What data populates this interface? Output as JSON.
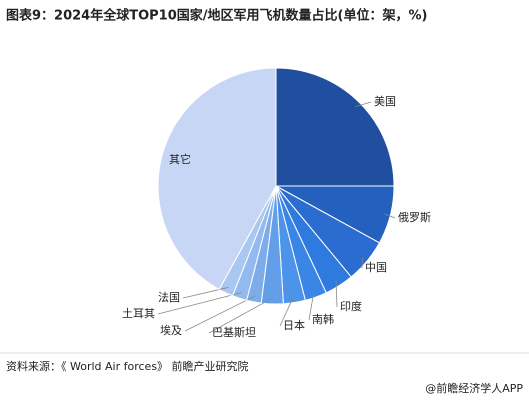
{
  "chart_data": {
    "type": "pie",
    "title": "图表9：2024年全球TOP10国家/地区军用飞机数量占比(单位：架，%)",
    "categories": [
      "美国",
      "俄罗斯",
      "中国",
      "印度",
      "南韩",
      "日本",
      "巴基斯坦",
      "埃及",
      "土耳其",
      "法国",
      "其它"
    ],
    "values": [
      25,
      8,
      6,
      4,
      3,
      3,
      3,
      2,
      2,
      2,
      42
    ],
    "colors": [
      "#1f4f9e",
      "#2460bd",
      "#2a6cd0",
      "#2f7ade",
      "#3a86e6",
      "#4c93ea",
      "#639fe8",
      "#7daceb",
      "#93baee",
      "#a9c7f1",
      "#c8d6f5"
    ],
    "source": "资料来源：《 World Air forces》 前瞻产业研究院",
    "credit": "@前瞻经济学人APP"
  }
}
